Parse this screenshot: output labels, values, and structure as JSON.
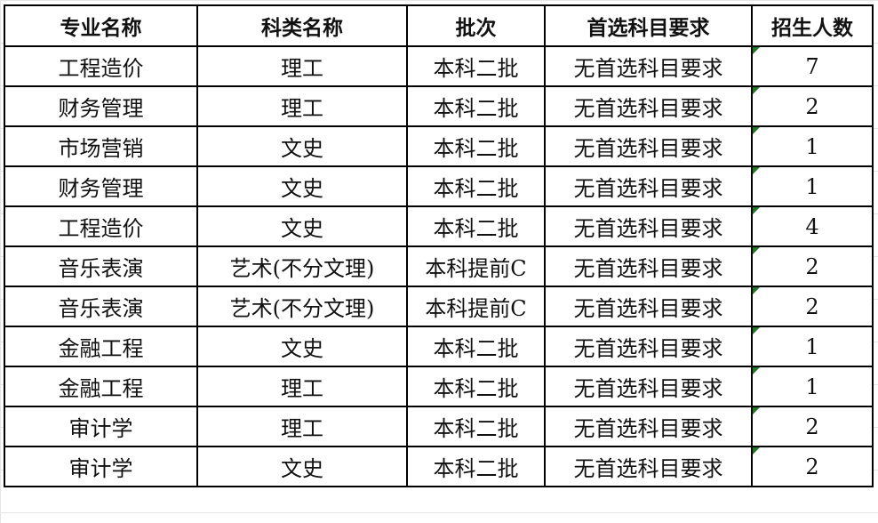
{
  "table": {
    "headers": [
      "专业名称",
      "科类名称",
      "批次",
      "首选科目要求",
      "招生人数"
    ],
    "rows": [
      [
        "工程造价",
        "理工",
        "本科二批",
        "无首选科目要求",
        "7"
      ],
      [
        "财务管理",
        "理工",
        "本科二批",
        "无首选科目要求",
        "2"
      ],
      [
        "市场营销",
        "文史",
        "本科二批",
        "无首选科目要求",
        "1"
      ],
      [
        "财务管理",
        "文史",
        "本科二批",
        "无首选科目要求",
        "1"
      ],
      [
        "工程造价",
        "文史",
        "本科二批",
        "无首选科目要求",
        "4"
      ],
      [
        "音乐表演",
        "艺术(不分文理)",
        "本科提前C",
        "无首选科目要求",
        "2"
      ],
      [
        "音乐表演",
        "艺术(不分文理)",
        "本科提前C",
        "无首选科目要求",
        "2"
      ],
      [
        "金融工程",
        "文史",
        "本科二批",
        "无首选科目要求",
        "1"
      ],
      [
        "金融工程",
        "理工",
        "本科二批",
        "无首选科目要求",
        "1"
      ],
      [
        "审计学",
        "理工",
        "本科二批",
        "无首选科目要求",
        "2"
      ],
      [
        "审计学",
        "文史",
        "本科二批",
        "无首选科目要求",
        "2"
      ]
    ],
    "marker_color": "#1e7a1e"
  }
}
